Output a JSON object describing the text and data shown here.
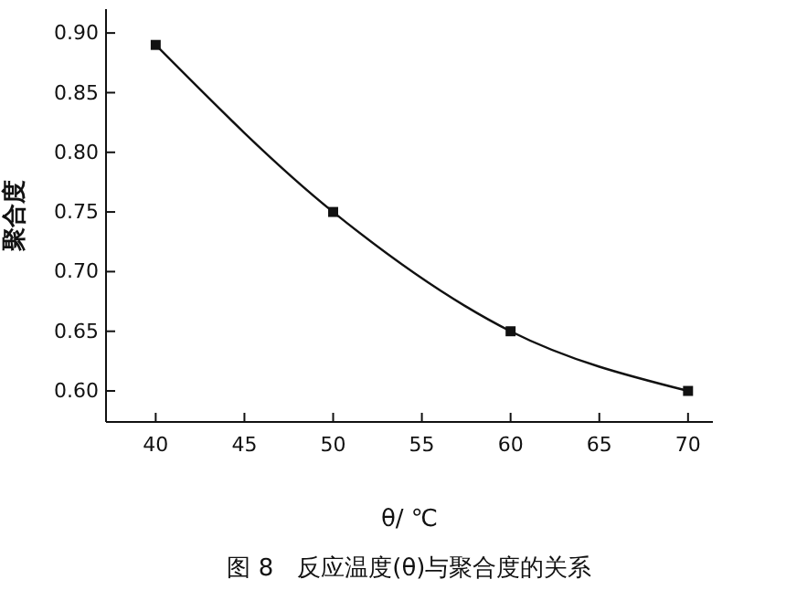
{
  "chart_data": {
    "type": "line",
    "title": "图 8　反应温度(θ)与聚合度的关系",
    "xlabel": "θ/ ℃",
    "ylabel": "聚合度",
    "x": [
      40,
      50,
      60,
      70
    ],
    "series": [
      {
        "color": "#111111",
        "values": [
          0.89,
          0.75,
          0.65,
          0.6
        ]
      }
    ],
    "xlim": [
      37.2,
      71.4
    ],
    "xticks": [
      40,
      45,
      50,
      55,
      60,
      65,
      70
    ],
    "ylim": [
      0.574,
      0.92
    ],
    "yticks": [
      {
        "value": 0.6,
        "label": "0.60"
      },
      {
        "value": 0.65,
        "label": "0.65"
      },
      {
        "value": 0.7,
        "label": "0.70"
      },
      {
        "value": 0.75,
        "label": "0.75"
      },
      {
        "value": 0.8,
        "label": "0.80"
      },
      {
        "value": 0.85,
        "label": "0.85"
      },
      {
        "value": 0.9,
        "label": "0.90"
      }
    ],
    "marker": "square",
    "line_style": "solid",
    "grid": false
  }
}
